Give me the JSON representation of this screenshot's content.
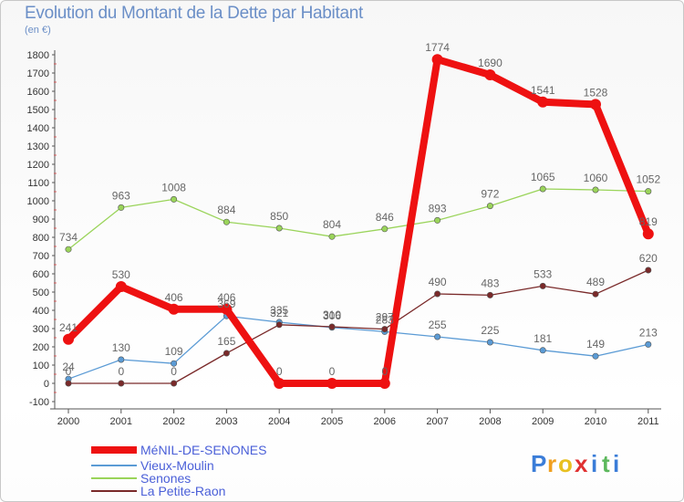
{
  "chart_data": {
    "type": "line",
    "title": "Evolution du Montant de la Dette par Habitant",
    "subtitle": "(en €)",
    "x": [
      "2000",
      "2001",
      "2002",
      "2003",
      "2004",
      "2005",
      "2006",
      "2007",
      "2008",
      "2009",
      "2010",
      "2011"
    ],
    "ylim": [
      -100,
      1800
    ],
    "yticks": [
      -100,
      0,
      100,
      200,
      300,
      400,
      500,
      600,
      700,
      800,
      900,
      1000,
      1100,
      1200,
      1300,
      1400,
      1500,
      1600,
      1700,
      1800
    ],
    "grid": false,
    "legend_position": "bottom-left",
    "series": [
      {
        "name": "MéNIL-DE-SENONES",
        "color": "#ee1111",
        "width": 8,
        "values": [
          241,
          530,
          406,
          406,
          0,
          0,
          0,
          1774,
          1690,
          1541,
          1528,
          819
        ],
        "labels": [
          "241",
          "530",
          "406",
          "406",
          "0",
          "0",
          "0",
          "1774",
          "1690",
          "1541",
          "1528",
          "819"
        ]
      },
      {
        "name": "Vieux-Moulin",
        "color": "#5b9bd5",
        "width": 1.3,
        "values": [
          24,
          130,
          109,
          369,
          335,
          306,
          283,
          255,
          225,
          181,
          149,
          213
        ],
        "labels": [
          "24",
          "130",
          "109",
          "369",
          "335",
          "306",
          "283",
          "255",
          "225",
          "181",
          "149",
          "213"
        ]
      },
      {
        "name": "Senones",
        "color": "#9ad45a",
        "width": 1.3,
        "values": [
          734,
          963,
          1008,
          884,
          850,
          804,
          846,
          893,
          972,
          1065,
          1060,
          1052
        ],
        "labels": [
          "734",
          "963",
          "1008",
          "884",
          "850",
          "804",
          "846",
          "893",
          "972",
          "1065",
          "1060",
          "1052"
        ]
      },
      {
        "name": "La Petite-Raon",
        "color": "#7a2a2a",
        "width": 1.3,
        "values": [
          0,
          0,
          0,
          165,
          321,
          310,
          297,
          490,
          483,
          533,
          489,
          620
        ],
        "labels": [
          "0",
          "0",
          "0",
          "165",
          "321",
          "310",
          "297",
          "490",
          "483",
          "533",
          "489",
          "620"
        ]
      }
    ]
  },
  "brand": {
    "letters": [
      "P",
      "r",
      "o",
      "x",
      "i",
      "t",
      "i"
    ],
    "colors": [
      "#3b7dd8",
      "#f0a020",
      "#e8c020",
      "#e03030",
      "#3b7dd8",
      "#5cb85c",
      "#3b7dd8"
    ]
  }
}
